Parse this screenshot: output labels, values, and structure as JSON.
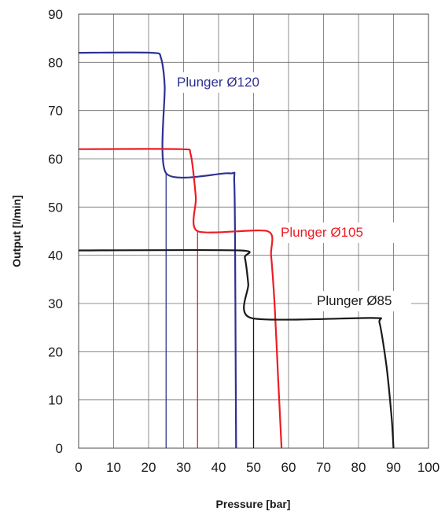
{
  "chart_data": {
    "type": "line",
    "xlabel": "Pressure [bar]",
    "ylabel": "Output [l/min]",
    "xlim": [
      0,
      100
    ],
    "ylim": [
      0,
      90
    ],
    "xticks": [
      0,
      10,
      20,
      30,
      40,
      50,
      60,
      70,
      80,
      90,
      100
    ],
    "yticks": [
      0,
      10,
      20,
      30,
      40,
      50,
      60,
      70,
      80,
      90
    ],
    "grid": true,
    "series": [
      {
        "name": "Plunger Ø120",
        "color": "#2e3192",
        "points": [
          [
            0,
            82
          ],
          [
            21,
            82
          ],
          [
            23.5,
            81
          ],
          [
            24.6,
            75
          ],
          [
            25,
            57
          ],
          [
            43,
            57
          ],
          [
            44.5,
            55
          ],
          [
            44.8,
            30
          ],
          [
            45,
            0
          ]
        ],
        "drop_line": [
          [
            25,
            57
          ],
          [
            25,
            0
          ]
        ]
      },
      {
        "name": "Plunger Ø105",
        "color": "#ed1c24",
        "points": [
          [
            0,
            62
          ],
          [
            29,
            62
          ],
          [
            32,
            61
          ],
          [
            33.5,
            52
          ],
          [
            34,
            45
          ],
          [
            54,
            45
          ],
          [
            55,
            40
          ],
          [
            56,
            30
          ],
          [
            57,
            15
          ],
          [
            58,
            0
          ]
        ],
        "drop_line": [
          [
            34,
            45
          ],
          [
            34,
            0
          ]
        ]
      },
      {
        "name": "Plunger Ø85",
        "color": "#1a1a1a",
        "points": [
          [
            0,
            41
          ],
          [
            46,
            41
          ],
          [
            47.5,
            39.5
          ],
          [
            48.5,
            34
          ],
          [
            49.3,
            27
          ],
          [
            84,
            27
          ],
          [
            86,
            26
          ],
          [
            88,
            17
          ],
          [
            89.5,
            6
          ],
          [
            90,
            0
          ]
        ],
        "drop_line": [
          [
            50,
            27
          ],
          [
            50,
            0
          ]
        ]
      }
    ]
  }
}
